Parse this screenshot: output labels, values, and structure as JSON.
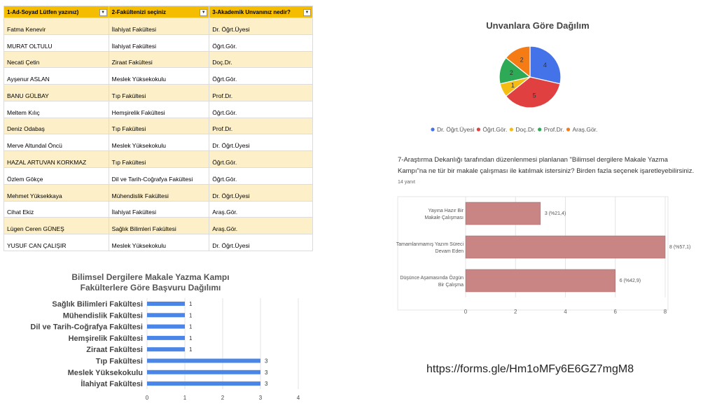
{
  "sheet": {
    "headers": [
      "1-Ad-Soyad Lütfen yazınız)",
      "2-Fakültenizi seçiniz",
      "3-Akademik Unvanınız nedir?"
    ],
    "rows": [
      [
        "Fatma Kenevir",
        "İlahiyat Fakültesi",
        "Dr. Öğrt.Üyesi"
      ],
      [
        "MURAT OLTULU",
        "İlahiyat Fakültesi",
        "Öğrt.Gör."
      ],
      [
        "Necati Çetin",
        "Ziraat Fakültesi",
        "Doç.Dr."
      ],
      [
        "Ayşenur ASLAN",
        "Meslek Yüksekokulu",
        "Öğrt.Gör."
      ],
      [
        "BANU GÜLBAY",
        "Tıp Fakültesi",
        "Prof.Dr."
      ],
      [
        "Meltem Kılıç",
        "Hemşirelik Fakültesi",
        "Öğrt.Gör."
      ],
      [
        "Deniz Odabaş",
        "Tıp Fakültesi",
        "Prof.Dr."
      ],
      [
        "Merve Altundal Öncü",
        "Meslek Yüksekokulu",
        "Dr. Öğrt.Üyesi"
      ],
      [
        "HAZAL ARTUVAN KORKMAZ",
        "Tıp Fakültesi",
        "Öğrt.Gör."
      ],
      [
        "Özlem Gökçe",
        "Dil ve Tarih-Coğrafya Fakültesi",
        "Öğrt.Gör."
      ],
      [
        "Mehmet Yüksekkaya",
        "Mühendislik Fakültesi",
        "Dr. Öğrt.Üyesi"
      ],
      [
        "Cihat Ekiz",
        "İlahiyat Fakültesi",
        "Araş.Gör."
      ],
      [
        "Lügen Ceren GÜNEŞ",
        "Sağlık Bilimleri Fakültesi",
        "Araş.Gör."
      ],
      [
        "YUSUF CAN ÇALIŞIR",
        "Meslek Yüksekokulu",
        "Dr. Öğrt.Üyesi"
      ]
    ]
  },
  "link": "https://forms.gle/Hm1oMFy6E6GZ7mgM8",
  "chart_data": [
    {
      "type": "pie",
      "title": "Unvanlara Göre Dağılım",
      "categories": [
        "Dr. Öğrt.Üyesi",
        "Öğrt.Gör.",
        "Doç.Dr.",
        "Prof.Dr.",
        "Araş.Gör."
      ],
      "values": [
        4,
        5,
        1,
        2,
        2
      ],
      "colors": [
        "#4472e8",
        "#e04040",
        "#f5bc14",
        "#2ea956",
        "#f57c14"
      ],
      "legend": "bottom"
    },
    {
      "type": "bar",
      "orientation": "horizontal",
      "title": "7-Araştırma Dekanlığı tarafından düzenlenmesi planlanan \"Bilimsel dergilere Makale Yazma Kampı\"na ne tür bir makale çalışması ile katılmak istersiniz? Birden fazla seçenek işaretleyebilirsiniz.",
      "subtitle": "14 yanıt",
      "categories": [
        "Yayına Hazır Bir Makale Çalışması",
        "Tamamlanmamış Yazım Süreci Devam Eden",
        "Düşünce Aşamasında Özgün Bir Çalışma"
      ],
      "values": [
        3,
        8,
        6
      ],
      "labels": [
        "3 (%21,4)",
        "8 (%57,1)",
        "6 (%42,9)"
      ],
      "xlim": [
        0,
        8
      ],
      "xticks": [
        "0",
        "2",
        "4",
        "6",
        "8"
      ],
      "color": "#c98484",
      "grid": true
    },
    {
      "type": "bar",
      "orientation": "horizontal",
      "title": "Bilimsel Dergilere Makale Yazma Kampı",
      "subtitle": "Fakülterlere Göre Başvuru Dağılımı",
      "categories": [
        "Sağlık Bilimleri Fakültesi",
        "Mühendislik Fakültesi",
        "Dil ve Tarih-Coğrafya Fakültesi",
        "Hemşirelik Fakültesi",
        "Ziraat Fakültesi",
        "Tıp Fakültesi",
        "Meslek Yüksekokulu",
        "İlahiyat Fakültesi"
      ],
      "values": [
        1,
        1,
        1,
        1,
        1,
        3,
        3,
        3
      ],
      "xlim": [
        0,
        4
      ],
      "xticks": [
        "0",
        "1",
        "2",
        "3",
        "4"
      ],
      "color": "#4a86e8",
      "grid": true
    }
  ]
}
